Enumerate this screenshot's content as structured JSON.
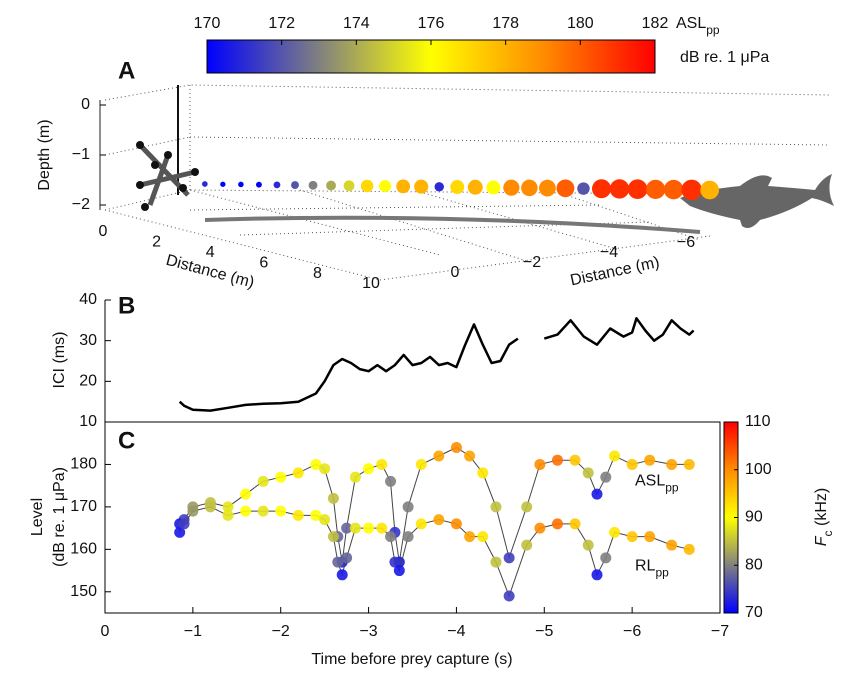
{
  "chart_data": [
    {
      "type": "scatter3d",
      "label": "A",
      "zlabel": "Depth (m)",
      "xlabel": "Distance (m)",
      "ylabel": "Distance (m)",
      "zlim": [
        -2,
        0
      ],
      "zticks": [
        0,
        {
          "value": -1,
          "label": "−1"
        },
        {
          "value": -2,
          "label": "−2"
        }
      ],
      "xlim": [
        0,
        10
      ],
      "xticks": [
        0,
        2,
        4,
        6,
        8,
        10
      ],
      "ylim": [
        0,
        -6
      ],
      "yticks": [
        0,
        {
          "value": -2,
          "label": "−2"
        },
        {
          "value": -4,
          "label": "−4"
        },
        {
          "value": -6,
          "label": "−6"
        }
      ],
      "distance": [
        1.6,
        1.3,
        1.0,
        0.7,
        0.4,
        0.1,
        -0.2,
        -0.5,
        -0.8,
        -1.1,
        -1.4,
        -1.7,
        -2.0,
        -2.3,
        -2.6,
        -2.9,
        -3.2,
        -3.5,
        -3.8,
        -4.1,
        -4.4,
        -4.7,
        -5.0,
        -5.3,
        -5.6,
        -5.9,
        -6.2,
        -6.5,
        -6.8
      ],
      "values": [
        171,
        170,
        170,
        170,
        171,
        172,
        173,
        174,
        175,
        177,
        176,
        178,
        178,
        171,
        177,
        178,
        176,
        179,
        179,
        179,
        180,
        172,
        181,
        181,
        181,
        180,
        180,
        181,
        178
      ],
      "colormap": [
        "#0000ff",
        "#808080",
        "#ffff00",
        "#ff8c00",
        "#ff0000"
      ],
      "colorbar": {
        "label": "ASL",
        "label_sub": "pp",
        "units": "dB re. 1 μPa",
        "lim": [
          170,
          182
        ],
        "ticks": [
          170,
          172,
          174,
          176,
          178,
          180,
          182
        ]
      }
    },
    {
      "type": "line",
      "label": "B",
      "ylabel": "ICI (ms)",
      "color": "#000000",
      "xlim": [
        0,
        -7
      ],
      "ylim": [
        10,
        40
      ],
      "yticks": [
        10,
        20,
        30,
        40
      ],
      "x": [
        -0.85,
        -0.9,
        -1.0,
        -1.2,
        -1.4,
        -1.6,
        -1.8,
        -2.0,
        -2.2,
        -2.4,
        -2.5,
        -2.6,
        -2.7,
        -2.8,
        -2.9,
        -3.0,
        -3.1,
        -3.2,
        -3.3,
        -3.4,
        -3.5,
        -3.6,
        -3.7,
        -3.8,
        -3.9,
        -4.0,
        -4.1,
        -4.2,
        -4.3,
        -4.4,
        -4.5,
        -4.6,
        -4.7,
        -4.85,
        -5.0,
        -5.15,
        -5.3,
        -5.45,
        -5.6,
        -5.75,
        -5.9,
        -6.0,
        -6.05,
        -6.15,
        -6.25,
        -6.35,
        -6.45,
        -6.55,
        -6.65,
        -6.7
      ],
      "values": [
        15,
        14,
        13,
        12.8,
        13.5,
        14.2,
        14.5,
        14.6,
        15,
        17,
        20,
        24,
        25.5,
        24.5,
        23,
        22.5,
        24,
        22.5,
        24,
        26.5,
        24,
        24.5,
        26,
        24,
        24.5,
        23.5,
        29,
        34,
        29,
        24.5,
        25,
        29,
        30.5,
        null,
        30.5,
        31.5,
        35,
        31,
        29,
        33,
        31,
        32,
        35.5,
        32.5,
        30,
        31.5,
        35,
        33,
        31.5,
        32.5
      ]
    },
    {
      "type": "scatter",
      "label": "C",
      "ylabel": [
        "Level",
        "(dB re. 1 μPa)"
      ],
      "xlabel": "Time before prey capture (s)",
      "xlim": [
        0,
        -7
      ],
      "xticks": [
        0,
        {
          "value": -1,
          "label": "−1"
        },
        {
          "value": -2,
          "label": "−2"
        },
        {
          "value": -3,
          "label": "−3"
        },
        {
          "value": -4,
          "label": "−4"
        },
        {
          "value": -5,
          "label": "−5"
        },
        {
          "value": -6,
          "label": "−6"
        },
        {
          "value": -7,
          "label": "−7"
        }
      ],
      "ylim": [
        145,
        190
      ],
      "yticks": [
        150,
        160,
        170,
        180
      ],
      "x": [
        -0.85,
        -0.9,
        -1.0,
        -1.2,
        -1.4,
        -1.6,
        -1.8,
        -2.0,
        -2.2,
        -2.4,
        -2.5,
        -2.6,
        -2.65,
        -2.7,
        -2.75,
        -2.85,
        -3.0,
        -3.15,
        -3.25,
        -3.3,
        -3.35,
        -3.45,
        -3.6,
        -3.8,
        -4.0,
        -4.15,
        -4.3,
        -4.45,
        -4.6,
        -4.8,
        -4.95,
        -5.15,
        -5.35,
        -5.5,
        -5.6,
        -5.7,
        -5.8,
        -6.0,
        -6.2,
        -6.45,
        -6.65
      ],
      "series": [
        {
          "name": "ASL",
          "name_sub": "pp",
          "values": [
            164,
            167,
            170,
            171,
            170,
            173,
            176,
            177,
            178,
            180,
            179,
            172,
            163,
            157,
            165,
            177,
            179,
            180,
            176,
            164,
            157,
            170,
            180,
            182,
            184,
            182,
            178,
            170,
            158,
            170,
            180,
            181,
            181,
            178,
            173,
            177,
            182,
            180,
            181,
            180,
            180
          ],
          "fc": [
            72,
            75,
            82,
            85,
            88,
            90,
            88,
            90,
            92,
            90,
            88,
            85,
            78,
            72,
            78,
            88,
            90,
            92,
            80,
            74,
            72,
            80,
            92,
            98,
            100,
            98,
            92,
            85,
            75,
            85,
            100,
            102,
            95,
            85,
            72,
            80,
            92,
            95,
            98,
            98,
            96
          ]
        },
        {
          "name": "RL",
          "name_sub": "pp",
          "values": [
            166,
            166,
            169,
            170,
            168,
            169,
            169,
            169,
            168,
            168,
            167,
            163,
            157,
            154,
            158,
            165,
            165,
            165,
            163,
            157,
            155,
            163,
            166,
            167,
            166,
            163,
            163,
            157,
            149,
            161,
            165,
            166,
            166,
            161,
            154,
            158,
            164,
            163,
            163,
            161,
            160
          ],
          "fc": [
            72,
            75,
            82,
            85,
            88,
            90,
            88,
            90,
            92,
            90,
            88,
            85,
            78,
            72,
            78,
            88,
            90,
            92,
            80,
            74,
            72,
            80,
            92,
            98,
            100,
            98,
            92,
            85,
            75,
            85,
            100,
            102,
            95,
            85,
            72,
            80,
            92,
            95,
            98,
            98,
            96
          ]
        }
      ],
      "colormap": [
        "#0000ff",
        "#808080",
        "#ffff00",
        "#ff8c00",
        "#ff0000"
      ],
      "colorbar": {
        "label": "F",
        "label_sub": "c",
        "label_units": " (kHz)",
        "lim": [
          70,
          110
        ],
        "ticks": [
          70,
          80,
          90,
          100,
          110
        ]
      }
    }
  ]
}
